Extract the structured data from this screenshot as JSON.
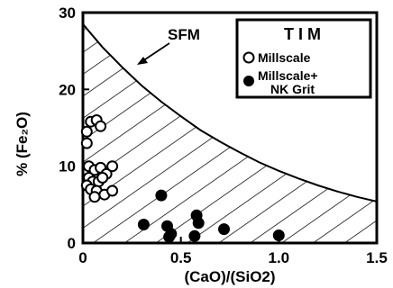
{
  "chart_data": {
    "type": "scatter",
    "xlabel": "(CaO)/(SiO2)",
    "ylabel": "% (Fe₂O)",
    "xlim": [
      0,
      1.5
    ],
    "ylim": [
      0,
      30
    ],
    "x_ticks": [
      "0",
      "0.5",
      "1.0",
      "1.5"
    ],
    "y_ticks": [
      "0",
      "10",
      "20",
      "30"
    ],
    "grid": false,
    "legend_placement": "top-right",
    "legend": {
      "title": "TIM",
      "entries": [
        {
          "label": "Millscale",
          "marker": "open-circle"
        },
        {
          "label_line1": "Millscale+",
          "label_line2": "NK Grit",
          "marker": "filled-circle"
        }
      ]
    },
    "region": {
      "label": "SFM",
      "fill": "diagonal-hatch",
      "boundary_x": [
        0,
        0.1,
        0.2,
        0.3,
        0.4,
        0.5,
        0.6,
        0.7,
        0.8,
        0.9,
        1.0,
        1.1,
        1.2,
        1.3,
        1.4,
        1.5
      ],
      "boundary_y": [
        28.5,
        25.5,
        22.9,
        20.5,
        18.4,
        16.5,
        14.7,
        13.2,
        11.8,
        10.5,
        9.4,
        8.4,
        7.5,
        6.7,
        6.0,
        5.4
      ]
    },
    "series": [
      {
        "name": "Millscale",
        "marker": "open-circle",
        "points": [
          [
            0.02,
            14.5
          ],
          [
            0.04,
            15.8
          ],
          [
            0.07,
            16.0
          ],
          [
            0.09,
            15.2
          ],
          [
            0.02,
            13.0
          ],
          [
            0.03,
            10.0
          ],
          [
            0.06,
            9.5
          ],
          [
            0.09,
            9.8
          ],
          [
            0.12,
            9.0
          ],
          [
            0.15,
            10.0
          ],
          [
            0.03,
            8.5
          ],
          [
            0.05,
            8.0
          ],
          [
            0.08,
            8.0
          ],
          [
            0.02,
            7.5
          ],
          [
            0.04,
            7.0
          ],
          [
            0.07,
            6.8
          ],
          [
            0.11,
            6.3
          ],
          [
            0.15,
            6.8
          ],
          [
            0.1,
            8.5
          ],
          [
            0.06,
            6.0
          ]
        ]
      },
      {
        "name": "Millscale+ NK Grit",
        "marker": "filled-circle",
        "points": [
          [
            0.31,
            2.4
          ],
          [
            0.4,
            6.2
          ],
          [
            0.43,
            2.2
          ],
          [
            0.45,
            1.2
          ],
          [
            0.44,
            0.8
          ],
          [
            0.58,
            3.6
          ],
          [
            0.59,
            2.6
          ],
          [
            0.57,
            0.9
          ],
          [
            0.72,
            1.8
          ],
          [
            1.0,
            1.0
          ]
        ]
      }
    ]
  }
}
